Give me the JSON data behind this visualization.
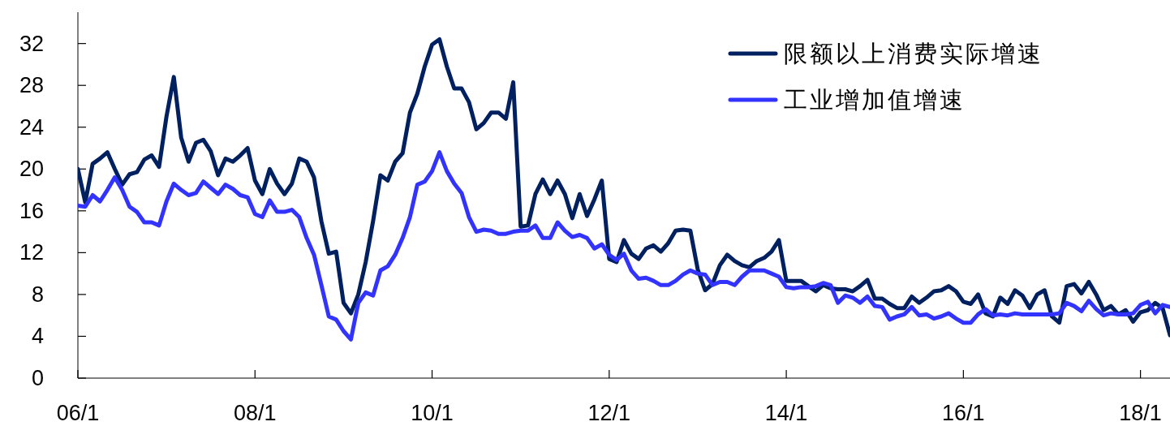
{
  "chart_data": {
    "type": "line",
    "categories": [
      "06/1",
      null,
      null,
      null,
      null,
      null,
      null,
      null,
      null,
      null,
      null,
      null,
      null,
      null,
      null,
      null,
      null,
      null,
      null,
      null,
      null,
      null,
      null,
      null,
      "08/1",
      null,
      null,
      null,
      null,
      null,
      null,
      null,
      null,
      null,
      null,
      null,
      null,
      null,
      null,
      null,
      null,
      null,
      null,
      null,
      null,
      null,
      null,
      null,
      "10/1",
      null,
      null,
      null,
      null,
      null,
      null,
      null,
      null,
      null,
      null,
      null,
      null,
      null,
      null,
      null,
      null,
      null,
      null,
      null,
      null,
      null,
      null,
      null,
      "12/1",
      null,
      null,
      null,
      null,
      null,
      null,
      null,
      null,
      null,
      null,
      null,
      null,
      null,
      null,
      null,
      null,
      null,
      null,
      null,
      null,
      null,
      null,
      null,
      "14/1",
      null,
      null,
      null,
      null,
      null,
      null,
      null,
      null,
      null,
      null,
      null,
      null,
      null,
      null,
      null,
      null,
      null,
      null,
      null,
      null,
      null,
      null,
      null,
      "16/1",
      null,
      null,
      null,
      null,
      null,
      null,
      null,
      null,
      null,
      null,
      null,
      null,
      null,
      null,
      null,
      null,
      null,
      null,
      null,
      null,
      null,
      null,
      null,
      "18/1",
      null,
      null,
      null,
      null
    ],
    "series": [
      {
        "name": "限额以上消费实际增速",
        "color": "#002060",
        "values": [
          20,
          16.8,
          20.5,
          21,
          21.6,
          20,
          18.5,
          19.5,
          19.7,
          20.9,
          21.3,
          20.2,
          25,
          28.8,
          23,
          20.7,
          22.5,
          22.8,
          21.7,
          19.4,
          21,
          20.7,
          21.3,
          22,
          18.9,
          17.6,
          20,
          18.6,
          17.6,
          18.6,
          21,
          20.7,
          19.2,
          15,
          11.9,
          12.1,
          7.2,
          6.2,
          8,
          11.1,
          15,
          19.4,
          18.9,
          20.7,
          21.5,
          25.4,
          27.2,
          29.8,
          31.9,
          32.4,
          29.8,
          27.7,
          27.7,
          26.4,
          23.8,
          24.4,
          25.4,
          25.4,
          24.8,
          28.3,
          14.5,
          14.6,
          17.6,
          19,
          17.6,
          18.9,
          17.6,
          15.3,
          17.6,
          15.5,
          17.1,
          18.9,
          11.4,
          11.1,
          13.2,
          11.9,
          11.4,
          12.4,
          12.7,
          12.1,
          12.9,
          14.1,
          14.2,
          14.1,
          10.4,
          8.4,
          9,
          10.8,
          11.8,
          11.2,
          10.8,
          10.6,
          11.2,
          11.5,
          12.1,
          13.2,
          9.3,
          9.3,
          9.3,
          8.8,
          8.3,
          8.9,
          8.6,
          8.5,
          8.5,
          8.3,
          8.8,
          9.4,
          7.6,
          7.6,
          7.1,
          6.7,
          6.7,
          7.8,
          7.2,
          7.7,
          8.3,
          8.4,
          8.8,
          8.3,
          7.3,
          7.1,
          8,
          6.2,
          5.9,
          7.7,
          7.1,
          8.4,
          7.9,
          6.7,
          8,
          8.4,
          5.9,
          5.3,
          8.8,
          9,
          8.1,
          9.2,
          8,
          6.5,
          6.9,
          6.1,
          6.5,
          5.4,
          6.3,
          6.5,
          7.2,
          6.7,
          4.1
        ]
      },
      {
        "name": "工业增加值增速",
        "color": "#3333ff",
        "values": [
          16.5,
          16.4,
          17.5,
          16.9,
          18,
          19.2,
          18,
          16.4,
          15.9,
          14.9,
          14.9,
          14.6,
          16.9,
          18.6,
          18,
          17.5,
          17.7,
          18.8,
          18.2,
          17.6,
          18.5,
          18.1,
          17.5,
          17.3,
          15.7,
          15.4,
          17,
          15.9,
          15.9,
          16.1,
          15.4,
          13.4,
          11.8,
          8.9,
          5.9,
          5.6,
          4.5,
          3.7,
          7.2,
          8.2,
          7.9,
          10.3,
          10.7,
          11.8,
          13.4,
          15.4,
          18.5,
          18.8,
          19.8,
          21.6,
          19.8,
          18.6,
          17.7,
          15.4,
          14,
          14.2,
          14.1,
          13.8,
          13.8,
          14,
          14.1,
          14.1,
          14.6,
          13.4,
          13.4,
          14.9,
          14.1,
          13.5,
          13.7,
          13.4,
          12.4,
          12.8,
          11.8,
          11.3,
          11.9,
          10.3,
          9.5,
          9.6,
          9.3,
          8.9,
          8.9,
          9.3,
          9.9,
          10.3,
          10,
          9.9,
          8.9,
          9.2,
          9.2,
          8.9,
          9.7,
          10.3,
          10.3,
          10.3,
          10,
          9.7,
          8.7,
          8.6,
          8.7,
          8.7,
          8.8,
          9.1,
          8.9,
          7.2,
          7.9,
          7.7,
          7.2,
          7.8,
          6.9,
          6.8,
          5.6,
          5.9,
          6.1,
          6.8,
          6,
          6.1,
          5.7,
          5.9,
          6.2,
          5.7,
          5.3,
          5.3,
          6.1,
          6.6,
          6,
          6.1,
          6,
          6.2,
          6.1,
          6.1,
          6.1,
          6.1,
          6.1,
          6.2,
          7.2,
          6.9,
          6.4,
          7.4,
          6.6,
          6,
          6.2,
          6.1,
          6.1,
          6.2,
          7,
          7.3,
          6.2,
          7,
          6.8
        ]
      }
    ],
    "ylim": [
      0,
      35
    ],
    "yticks": [
      0,
      4,
      8,
      12,
      16,
      20,
      24,
      28,
      32
    ],
    "legend": "top right"
  }
}
